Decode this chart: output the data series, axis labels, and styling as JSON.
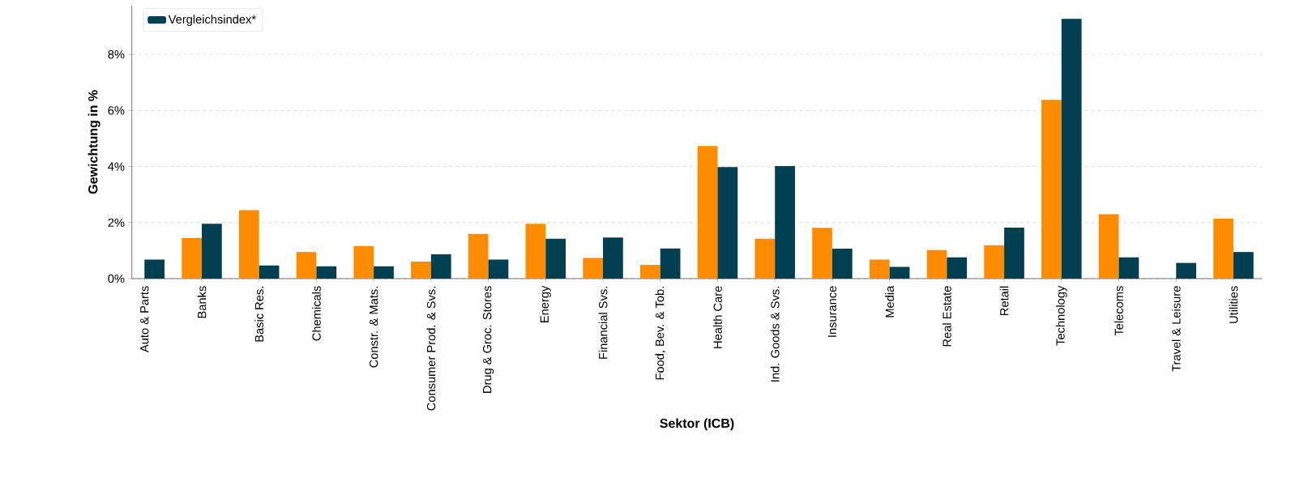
{
  "chart_data": {
    "type": "bar",
    "xlabel": "Sektor (ICB)",
    "ylabel": "Gewichtung in %",
    "categories": [
      "Auto & Parts",
      "Banks",
      "Basic Res.",
      "Chemicals",
      "Constr. & Mats.",
      "Consumer Prod. & Svs.",
      "Drug & Groc. Stores",
      "Energy",
      "Financial Svs.",
      "Food, Bev. & Tob.",
      "Health Care",
      "Ind. Goods & Svs.",
      "Insurance",
      "Media",
      "Real Estate",
      "Retail",
      "Technology",
      "Telecoms",
      "Travel & Leisure",
      "Utilities"
    ],
    "series": [
      {
        "color": "#ff8c00",
        "values": [
          null,
          1.45,
          2.44,
          0.95,
          1.16,
          0.61,
          1.6,
          1.96,
          0.74,
          0.49,
          4.73,
          1.42,
          1.81,
          0.68,
          1.02,
          1.19,
          6.38,
          2.3,
          null,
          2.14
        ]
      },
      {
        "name": "Vergleichsindex*",
        "color": "#004050",
        "values": [
          0.68,
          1.96,
          0.47,
          0.44,
          0.44,
          0.87,
          0.68,
          1.42,
          1.47,
          1.08,
          3.98,
          4.02,
          1.07,
          0.42,
          0.76,
          1.82,
          9.27,
          0.76,
          0.56,
          0.95
        ]
      }
    ],
    "ylim": [
      0,
      9.75
    ],
    "yticks": [
      {
        "value": 0,
        "label": "0%"
      },
      {
        "value": 2,
        "label": "2%"
      },
      {
        "value": 4,
        "label": "4%"
      },
      {
        "value": 6,
        "label": "6%"
      },
      {
        "value": 8,
        "label": "8%"
      }
    ],
    "grid": "y",
    "legend": "top left"
  }
}
